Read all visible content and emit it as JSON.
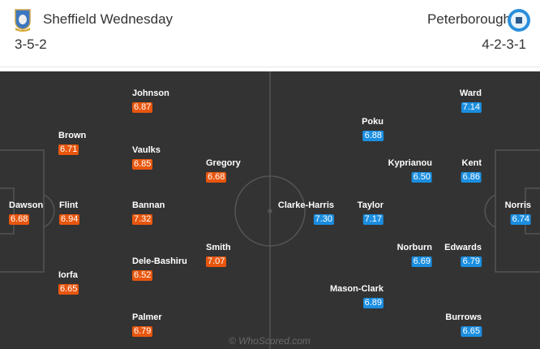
{
  "home": {
    "name": "Sheffield Wednesday",
    "formation": "3-5-2",
    "color": "#e8560e",
    "crest_icon": "sheffield-wednesday-crest",
    "players": [
      {
        "name": "Dawson",
        "rating": "6.68"
      },
      {
        "name": "Brown",
        "rating": "6.71"
      },
      {
        "name": "Flint",
        "rating": "6.94"
      },
      {
        "name": "Iorfa",
        "rating": "6.65"
      },
      {
        "name": "Johnson",
        "rating": "6.87"
      },
      {
        "name": "Vaulks",
        "rating": "6.85"
      },
      {
        "name": "Bannan",
        "rating": "7.32"
      },
      {
        "name": "Dele-Bashiru",
        "rating": "6.52"
      },
      {
        "name": "Palmer",
        "rating": "6.79"
      },
      {
        "name": "Gregory",
        "rating": "6.68"
      },
      {
        "name": "Smith",
        "rating": "7.07"
      }
    ]
  },
  "away": {
    "name": "Peterborough",
    "formation": "4-2-3-1",
    "color": "#1b8ee0",
    "crest_icon": "peterborough-crest",
    "players": [
      {
        "name": "Clarke-Harris",
        "rating": "7.30"
      },
      {
        "name": "Poku",
        "rating": "6.88"
      },
      {
        "name": "Kyprianou",
        "rating": "6.50"
      },
      {
        "name": "Taylor",
        "rating": "7.17"
      },
      {
        "name": "Norburn",
        "rating": "6.69"
      },
      {
        "name": "Mason-Clark",
        "rating": "6.89"
      },
      {
        "name": "Ward",
        "rating": "7.14"
      },
      {
        "name": "Kent",
        "rating": "6.86"
      },
      {
        "name": "Edwards",
        "rating": "6.79"
      },
      {
        "name": "Burrows",
        "rating": "6.65"
      },
      {
        "name": "Norris",
        "rating": "6.74"
      }
    ]
  },
  "watermark": "© WhoScored.com"
}
